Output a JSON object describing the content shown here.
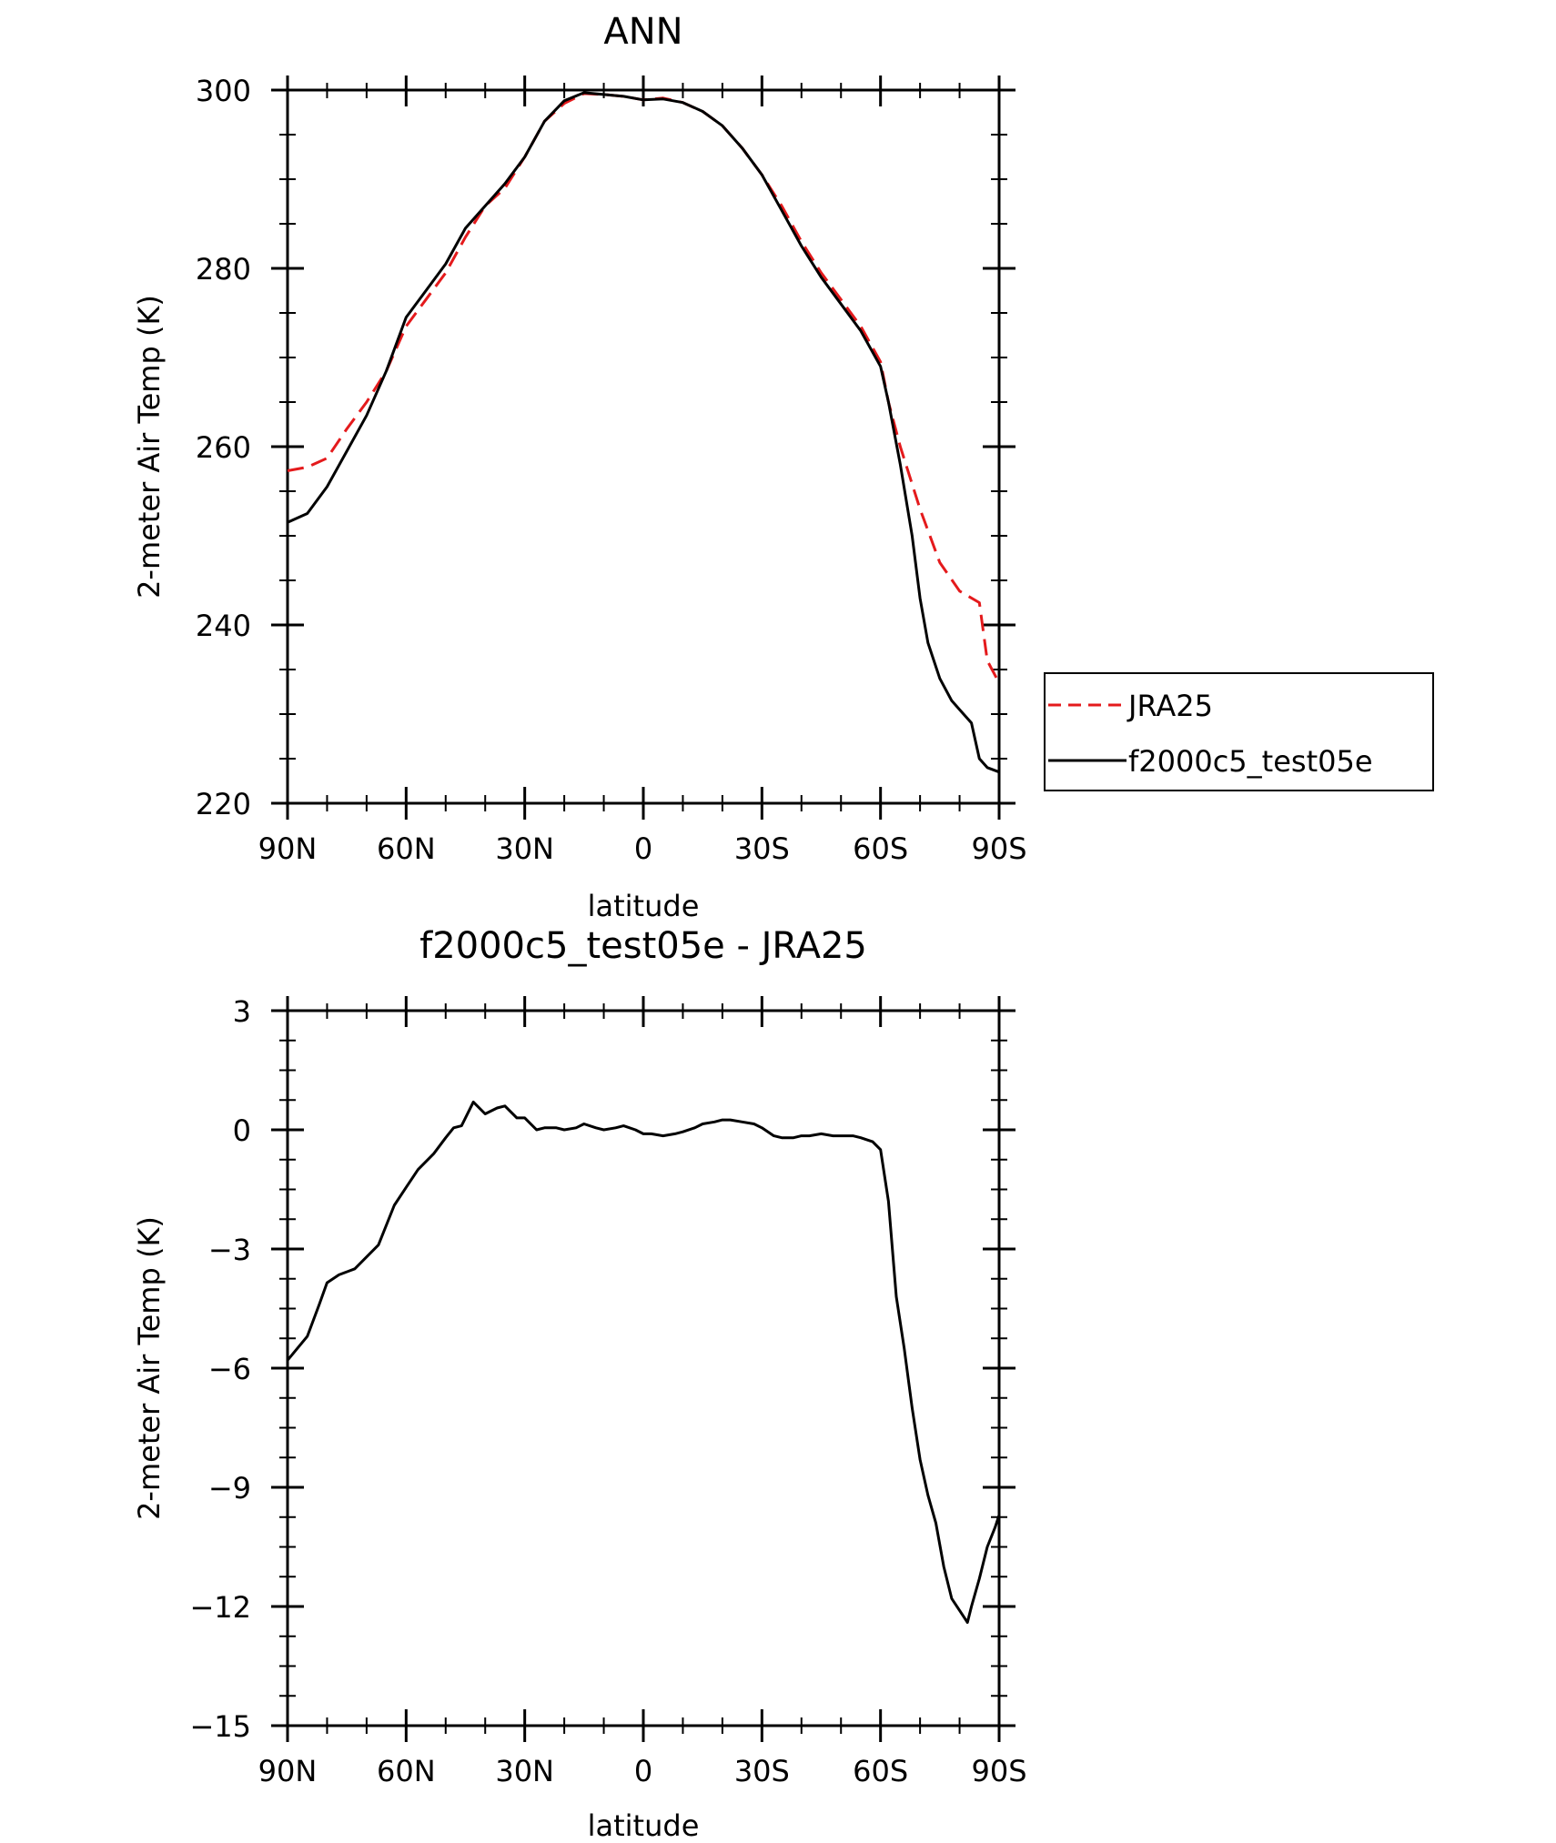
{
  "chart_data": [
    {
      "type": "line",
      "title": "ANN",
      "xlabel": "latitude",
      "ylabel": "2-meter Air Temp (K)",
      "xlim": [
        90,
        -90
      ],
      "ylim": [
        220,
        300
      ],
      "x_ticks": [
        90,
        60,
        30,
        0,
        -30,
        -60,
        -90
      ],
      "x_tick_labels": [
        "90N",
        "60N",
        "30N",
        "0",
        "30S",
        "60S",
        "90S"
      ],
      "y_ticks": [
        220,
        240,
        260,
        280,
        300
      ],
      "y_tick_labels": [
        "220",
        "240",
        "260",
        "280",
        "300"
      ],
      "grid": false,
      "legend": "right",
      "colors": {
        "JRA25": "#e41a1c",
        "f2000c5_test05e": "#000000"
      },
      "series": [
        {
          "name": "JRA25",
          "style": "dashed",
          "x": [
            90,
            85,
            80,
            75,
            70,
            65,
            60,
            55,
            50,
            45,
            40,
            35,
            30,
            25,
            20,
            15,
            10,
            5,
            0,
            -5,
            -10,
            -15,
            -20,
            -25,
            -30,
            -35,
            -40,
            -45,
            -50,
            -55,
            -60,
            -62,
            -65,
            -70,
            -75,
            -80,
            -85,
            -87,
            -90
          ],
          "y": [
            257.3,
            257.7,
            258.7,
            262,
            265,
            268.5,
            273.5,
            276.5,
            279.5,
            283.5,
            287,
            289,
            292.5,
            296.5,
            298.5,
            299.6,
            299.5,
            299.3,
            298.9,
            299.1,
            298.6,
            297.6,
            296,
            293.5,
            290.5,
            287,
            283,
            279.5,
            276.5,
            273.5,
            269.5,
            265,
            260,
            253,
            247,
            243.8,
            242.5,
            236,
            233.5
          ]
        },
        {
          "name": "f2000c5_test05e",
          "style": "solid",
          "x": [
            90,
            85,
            80,
            75,
            70,
            65,
            60,
            55,
            50,
            45,
            40,
            35,
            30,
            25,
            20,
            15,
            10,
            5,
            0,
            -5,
            -10,
            -15,
            -20,
            -25,
            -30,
            -35,
            -40,
            -45,
            -50,
            -55,
            -60,
            -62,
            -65,
            -68,
            -70,
            -72,
            -75,
            -78,
            -80,
            -83,
            -85,
            -87,
            -90
          ],
          "y": [
            251.5,
            252.5,
            255.5,
            259.5,
            263.5,
            268.5,
            274.5,
            277.5,
            280.5,
            284.5,
            287,
            289.5,
            292.5,
            296.5,
            298.8,
            299.7,
            299.5,
            299.3,
            298.9,
            299,
            298.6,
            297.6,
            296,
            293.5,
            290.5,
            286.5,
            282.5,
            279,
            276,
            273,
            269,
            265,
            258,
            250,
            243,
            238,
            234,
            231.5,
            230.5,
            229,
            225,
            224,
            223.5
          ]
        }
      ]
    },
    {
      "type": "line",
      "title": "f2000c5_test05e - JRA25",
      "xlabel": "latitude",
      "ylabel": "2-meter Air Temp (K)",
      "xlim": [
        90,
        -90
      ],
      "ylim": [
        -15,
        3
      ],
      "x_ticks": [
        90,
        60,
        30,
        0,
        -30,
        -60,
        -90
      ],
      "x_tick_labels": [
        "90N",
        "60N",
        "30N",
        "0",
        "30S",
        "60S",
        "90S"
      ],
      "y_ticks": [
        -15,
        -12,
        -9,
        -6,
        -3,
        0,
        3
      ],
      "y_tick_labels": [
        "−15",
        "−12",
        "−9",
        "−6",
        "−3",
        "0",
        "3"
      ],
      "grid": false,
      "colors": {
        "line": "#000000"
      },
      "series": [
        {
          "style": "solid",
          "x": [
            90,
            85,
            82,
            80,
            77,
            73,
            70,
            67,
            63,
            60,
            57,
            53,
            50,
            48,
            46,
            43,
            40,
            37,
            35,
            32,
            30,
            27,
            25,
            22,
            20,
            17,
            15,
            12,
            10,
            7,
            5,
            2,
            0,
            -2,
            -5,
            -8,
            -10,
            -13,
            -15,
            -18,
            -20,
            -22,
            -25,
            -28,
            -30,
            -33,
            -35,
            -38,
            -40,
            -42,
            -45,
            -48,
            -50,
            -53,
            -55,
            -58,
            -60,
            -62,
            -64,
            -66,
            -68,
            -70,
            -72,
            -74,
            -76,
            -78,
            -80,
            -82,
            -83,
            -85,
            -87,
            -89,
            -90
          ],
          "y": [
            -5.8,
            -5.2,
            -4.4,
            -3.85,
            -3.65,
            -3.5,
            -3.2,
            -2.9,
            -1.9,
            -1.45,
            -1.0,
            -0.6,
            -0.2,
            0.05,
            0.1,
            0.7,
            0.4,
            0.55,
            0.6,
            0.3,
            0.3,
            0.0,
            0.05,
            0.05,
            0.0,
            0.05,
            0.15,
            0.05,
            0.0,
            0.05,
            0.1,
            0.0,
            -0.1,
            -0.1,
            -0.15,
            -0.1,
            -0.05,
            0.05,
            0.15,
            0.2,
            0.25,
            0.25,
            0.2,
            0.15,
            0.05,
            -0.15,
            -0.2,
            -0.2,
            -0.15,
            -0.15,
            -0.1,
            -0.15,
            -0.15,
            -0.15,
            -0.2,
            -0.3,
            -0.5,
            -1.8,
            -4.2,
            -5.5,
            -7.0,
            -8.3,
            -9.2,
            -9.9,
            -11.0,
            -11.8,
            -12.1,
            -12.4,
            -12.0,
            -11.3,
            -10.5,
            -10.0,
            -9.7
          ]
        }
      ]
    }
  ]
}
